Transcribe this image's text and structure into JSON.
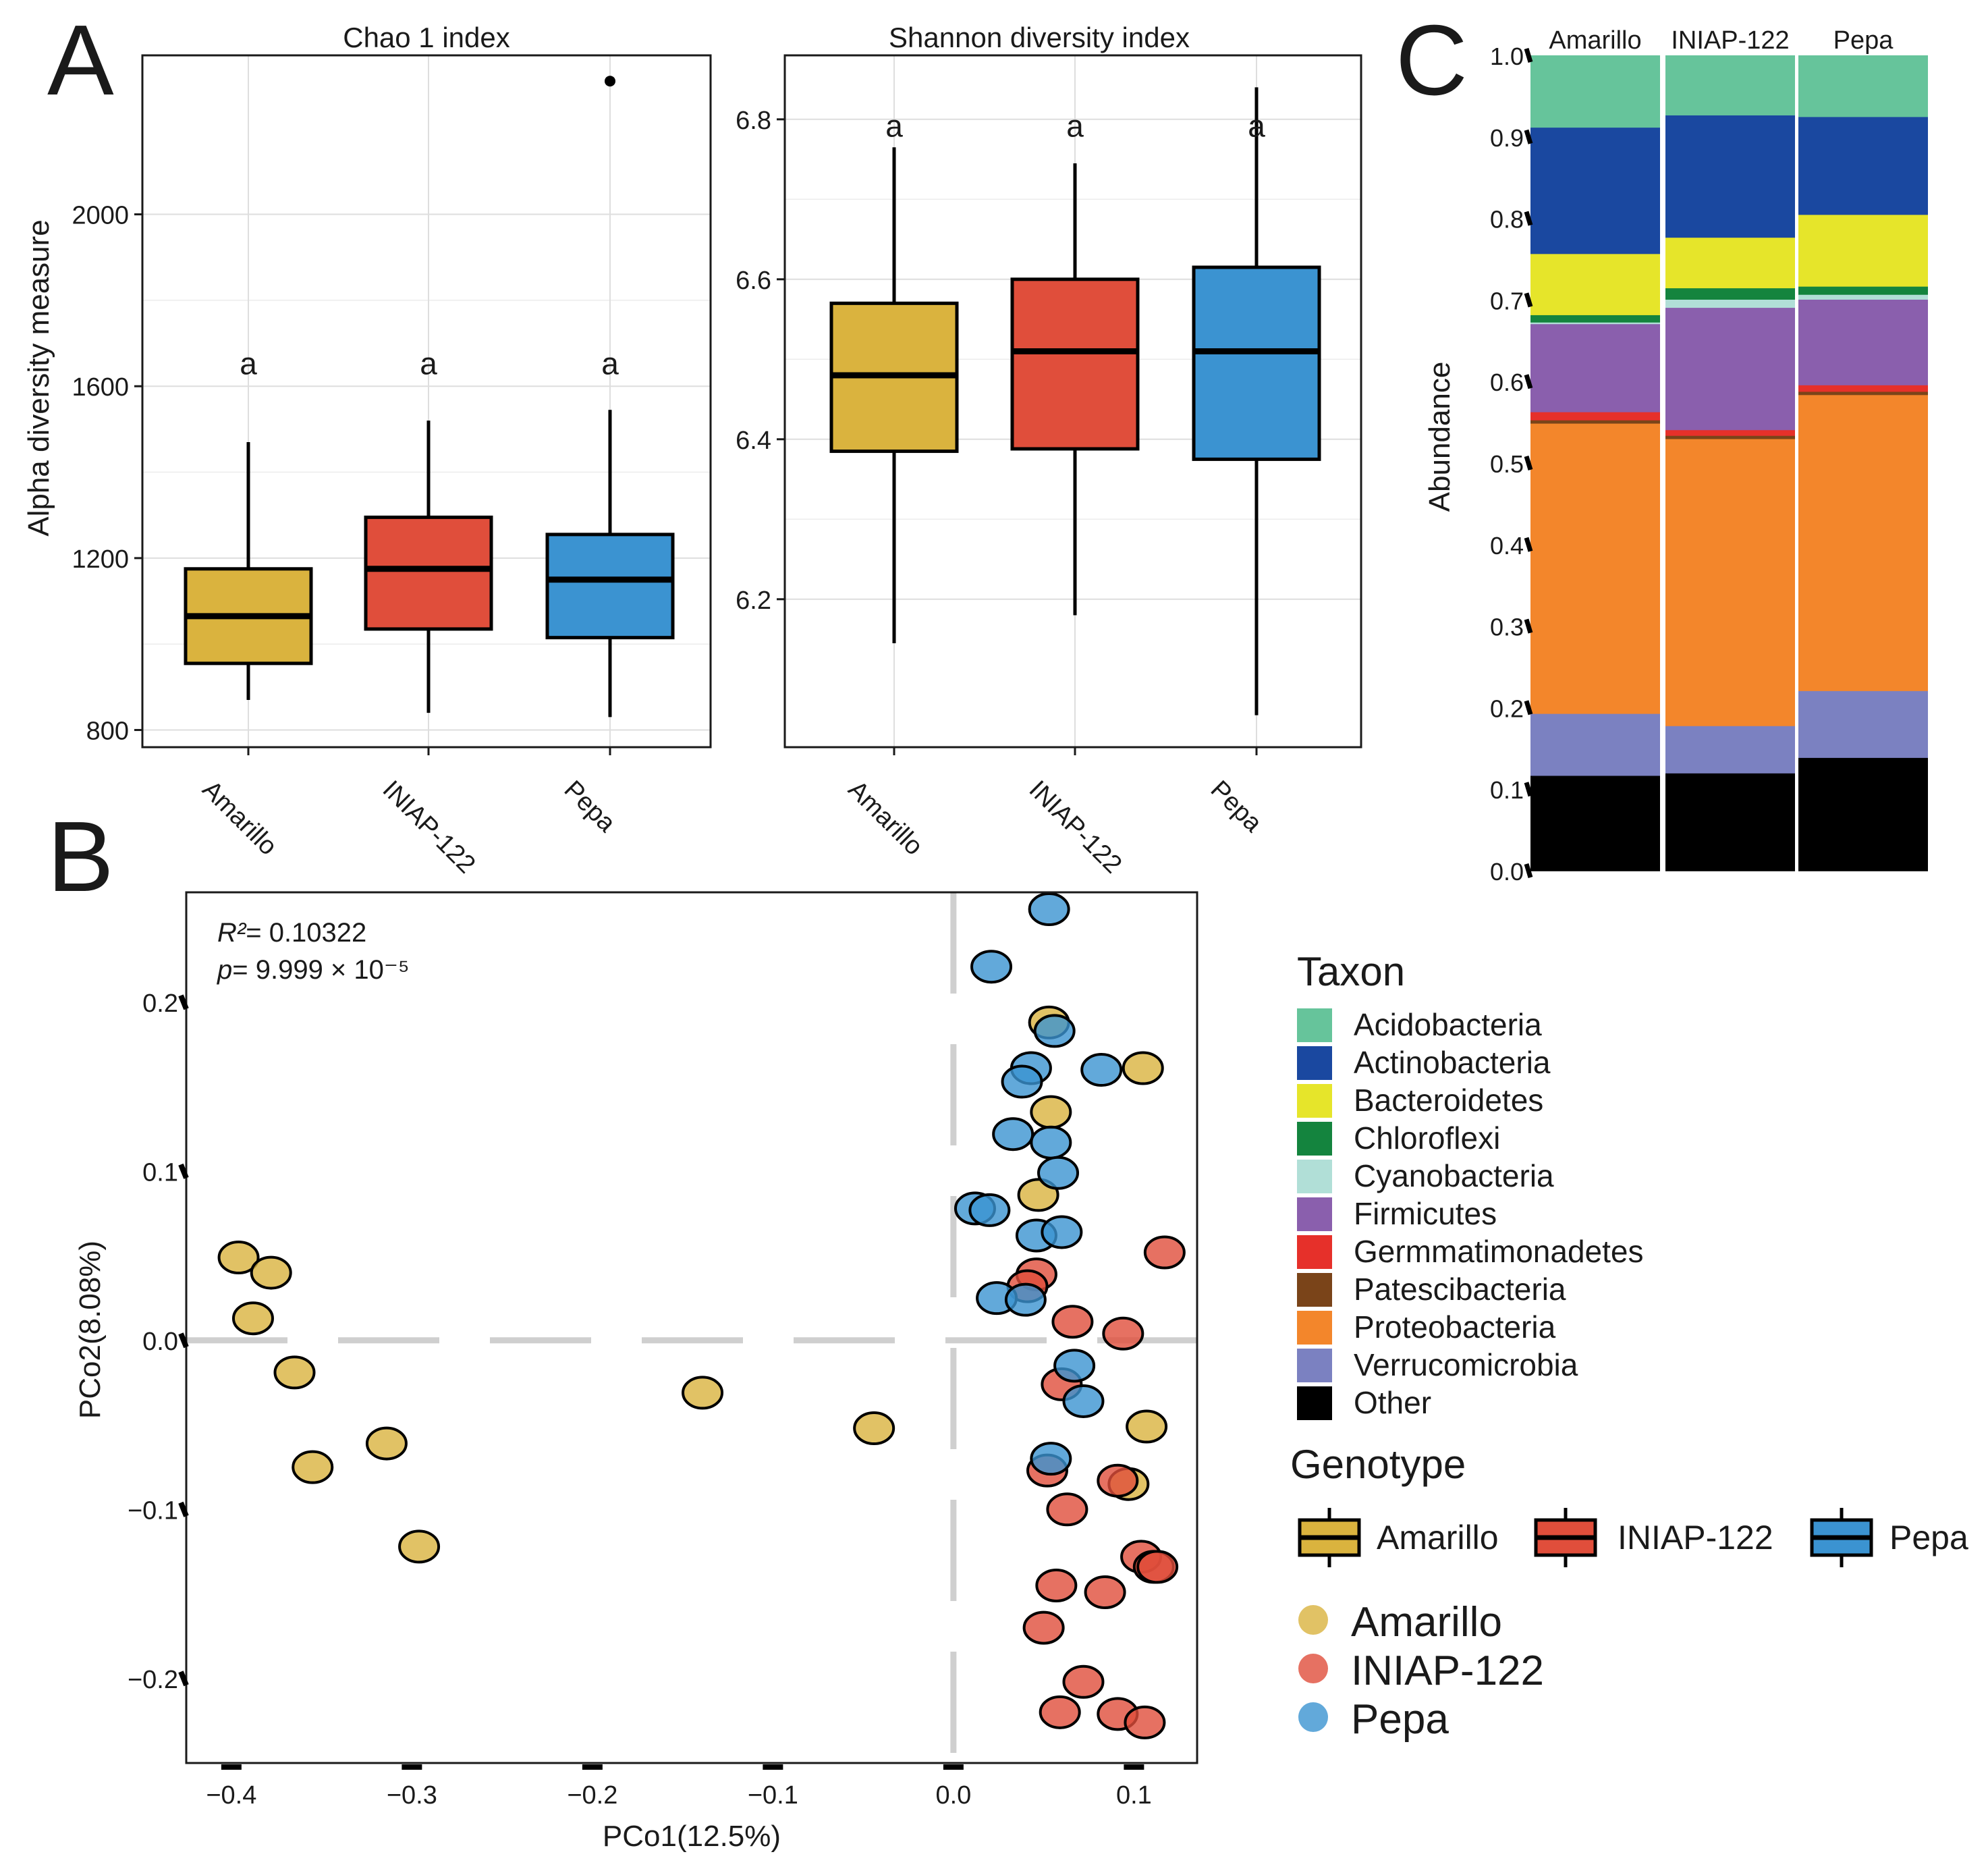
{
  "panel_labels": {
    "a": "A",
    "b": "B",
    "c": "C"
  },
  "colors": {
    "Amarillo": "#dab33e",
    "INIAP-122": "#e04e3b",
    "Pepa": "#3b93d1",
    "grid": "#dedede"
  },
  "chart_data": [
    {
      "id": "chao1",
      "type": "box",
      "title": "Chao 1 index",
      "ylabel": "Alpha diversity measure",
      "ylim": [
        760,
        2370
      ],
      "yticks": [
        800,
        1200,
        1600,
        2000
      ],
      "ytick_labels": [
        "800",
        "1200",
        "1600",
        "2000"
      ],
      "categories": [
        "Amarillo",
        "INIAP-122",
        "Pepa"
      ],
      "boxes": [
        {
          "name": "Amarillo",
          "min": 870,
          "q1": 955,
          "median": 1065,
          "q3": 1175,
          "max": 1470,
          "outliers": [],
          "letter": "a",
          "letter_y": 1650
        },
        {
          "name": "INIAP-122",
          "min": 840,
          "q1": 1035,
          "median": 1175,
          "q3": 1295,
          "max": 1520,
          "outliers": [],
          "letter": "a",
          "letter_y": 1650
        },
        {
          "name": "Pepa",
          "min": 830,
          "q1": 1015,
          "median": 1150,
          "q3": 1255,
          "max": 1545,
          "outliers": [
            2310
          ],
          "letter": "a",
          "letter_y": 1650
        }
      ]
    },
    {
      "id": "shannon",
      "type": "box",
      "title": "Shannon diversity index",
      "ylabel": "",
      "ylim": [
        6.015,
        6.88
      ],
      "yticks": [
        6.2,
        6.4,
        6.6,
        6.8
      ],
      "ytick_labels": [
        "6.2",
        "6.4",
        "6.6",
        "6.8"
      ],
      "categories": [
        "Amarillo",
        "INIAP-122",
        "Pepa"
      ],
      "boxes": [
        {
          "name": "Amarillo",
          "min": 6.145,
          "q1": 6.385,
          "median": 6.48,
          "q3": 6.57,
          "max": 6.765,
          "outliers": [],
          "letter": "a",
          "letter_y": 6.79
        },
        {
          "name": "INIAP-122",
          "min": 6.18,
          "q1": 6.388,
          "median": 6.51,
          "q3": 6.6,
          "max": 6.745,
          "outliers": [],
          "letter": "a",
          "letter_y": 6.79
        },
        {
          "name": "Pepa",
          "min": 6.055,
          "q1": 6.375,
          "median": 6.51,
          "q3": 6.615,
          "max": 6.84,
          "outliers": [],
          "letter": "a",
          "letter_y": 6.79
        }
      ]
    },
    {
      "id": "pcoa",
      "type": "scatter",
      "xlabel": "PCo1(12.5%)",
      "ylabel": "PCo2(8.08%)",
      "xlim": [
        -0.425,
        0.135
      ],
      "ylim": [
        -0.25,
        0.265
      ],
      "xticks": [
        -0.4,
        -0.3,
        -0.2,
        -0.1,
        0.0,
        0.1
      ],
      "xtick_labels": [
        "−0.4",
        "−0.3",
        "−0.2",
        "−0.1",
        "0.0",
        "0.1"
      ],
      "yticks": [
        -0.2,
        -0.1,
        0.0,
        0.1,
        0.2
      ],
      "ytick_labels": [
        "−0.2",
        "−0.1",
        "0.0",
        "0.1",
        "0.2"
      ],
      "annotation": {
        "r2_label": "R²",
        "r2_value": "= 0.10322",
        "p_label": "p",
        "p_value": "= 9.999 × 10⁻⁵"
      },
      "series": [
        {
          "name": "Amarillo",
          "points": [
            [
              -0.396,
              0.049
            ],
            [
              -0.378,
              0.04
            ],
            [
              -0.388,
              0.013
            ],
            [
              -0.365,
              -0.019
            ],
            [
              -0.355,
              -0.075
            ],
            [
              -0.314,
              -0.061
            ],
            [
              -0.296,
              -0.122
            ],
            [
              -0.139,
              -0.031
            ],
            [
              -0.044,
              -0.052
            ],
            [
              0.053,
              0.188
            ],
            [
              0.054,
              0.135
            ],
            [
              0.047,
              0.086
            ],
            [
              0.105,
              0.161
            ],
            [
              0.097,
              -0.085
            ],
            [
              0.107,
              -0.051
            ]
          ]
        },
        {
          "name": "INIAP-122",
          "points": [
            [
              0.046,
              0.039
            ],
            [
              0.041,
              0.032
            ],
            [
              0.066,
              0.011
            ],
            [
              0.094,
              0.004
            ],
            [
              0.117,
              0.052
            ],
            [
              0.06,
              -0.026
            ],
            [
              0.052,
              -0.077
            ],
            [
              0.091,
              -0.083
            ],
            [
              0.063,
              -0.1
            ],
            [
              0.104,
              -0.128
            ],
            [
              0.111,
              -0.134
            ],
            [
              0.113,
              -0.134
            ],
            [
              0.057,
              -0.145
            ],
            [
              0.084,
              -0.149
            ],
            [
              0.05,
              -0.17
            ],
            [
              0.072,
              -0.202
            ],
            [
              0.059,
              -0.22
            ],
            [
              0.091,
              -0.221
            ],
            [
              0.106,
              -0.226
            ]
          ]
        },
        {
          "name": "Pepa",
          "points": [
            [
              0.053,
              0.255
            ],
            [
              0.021,
              0.221
            ],
            [
              0.056,
              0.183
            ],
            [
              0.043,
              0.161
            ],
            [
              0.082,
              0.16
            ],
            [
              0.038,
              0.153
            ],
            [
              0.033,
              0.122
            ],
            [
              0.054,
              0.117
            ],
            [
              0.058,
              0.099
            ],
            [
              0.012,
              0.078
            ],
            [
              0.02,
              0.077
            ],
            [
              0.046,
              0.062
            ],
            [
              0.06,
              0.064
            ],
            [
              0.024,
              0.025
            ],
            [
              0.04,
              0.024
            ],
            [
              0.067,
              -0.015
            ],
            [
              0.072,
              -0.036
            ],
            [
              0.054,
              -0.07
            ]
          ]
        }
      ]
    },
    {
      "id": "abundance",
      "type": "stacked-bar",
      "ylabel": "Abundance",
      "ylim": [
        0,
        1
      ],
      "yticks": [
        0.0,
        0.1,
        0.2,
        0.3,
        0.4,
        0.5,
        0.6,
        0.7,
        0.8,
        0.9,
        1.0
      ],
      "ytick_labels": [
        "0.0",
        "0.1",
        "0.2",
        "0.3",
        "0.4",
        "0.5",
        "0.6",
        "0.7",
        "0.8",
        "0.9",
        "1.0"
      ],
      "categories": [
        "Amarillo",
        "INIAP-122",
        "Pepa"
      ],
      "taxa_bottom_to_top": [
        "Other",
        "Verrucomicrobia",
        "Proteobacteria",
        "Patescibacteria",
        "Germmatimonadetes",
        "Firmicutes",
        "Cyanobacteria",
        "Chloroflexi",
        "Bacteroidetes",
        "Actinobacteria",
        "Acidobacteria"
      ],
      "taxon_colors": {
        "Acidobacteria": "#66c49b",
        "Actinobacteria": "#1a48a0",
        "Bacteroidetes": "#e6e52a",
        "Chloroflexi": "#14843e",
        "Cyanobacteria": "#b1dfd7",
        "Firmicutes": "#8a5fad",
        "Germmatimonadetes": "#e6302a",
        "Patescibacteria": "#7a4419",
        "Proteobacteria": "#f3862b",
        "Verrucomicrobia": "#7b81c1",
        "Other": "#000000"
      },
      "values": {
        "Amarillo": [
          0.117,
          0.076,
          0.356,
          0.004,
          0.01,
          0.108,
          0.002,
          0.009,
          0.075,
          0.155,
          0.088
        ],
        "INIAP-122": [
          0.12,
          0.058,
          0.352,
          0.004,
          0.007,
          0.15,
          0.01,
          0.014,
          0.062,
          0.15,
          0.073
        ],
        "Pepa": [
          0.139,
          0.082,
          0.363,
          0.004,
          0.008,
          0.105,
          0.006,
          0.01,
          0.088,
          0.12,
          0.075
        ]
      }
    }
  ],
  "legends": {
    "taxon_title": "Taxon",
    "taxon_items": [
      "Acidobacteria",
      "Actinobacteria",
      "Bacteroidetes",
      "Chloroflexi",
      "Cyanobacteria",
      "Firmicutes",
      "Germmatimonadetes",
      "Patescibacteria",
      "Proteobacteria",
      "Verrucomicrobia",
      "Other"
    ],
    "genotype_title": "Genotype",
    "genotype_items": [
      "Amarillo",
      "INIAP-122",
      "Pepa"
    ],
    "point_items": [
      "Amarillo",
      "INIAP-122",
      "Pepa"
    ]
  }
}
